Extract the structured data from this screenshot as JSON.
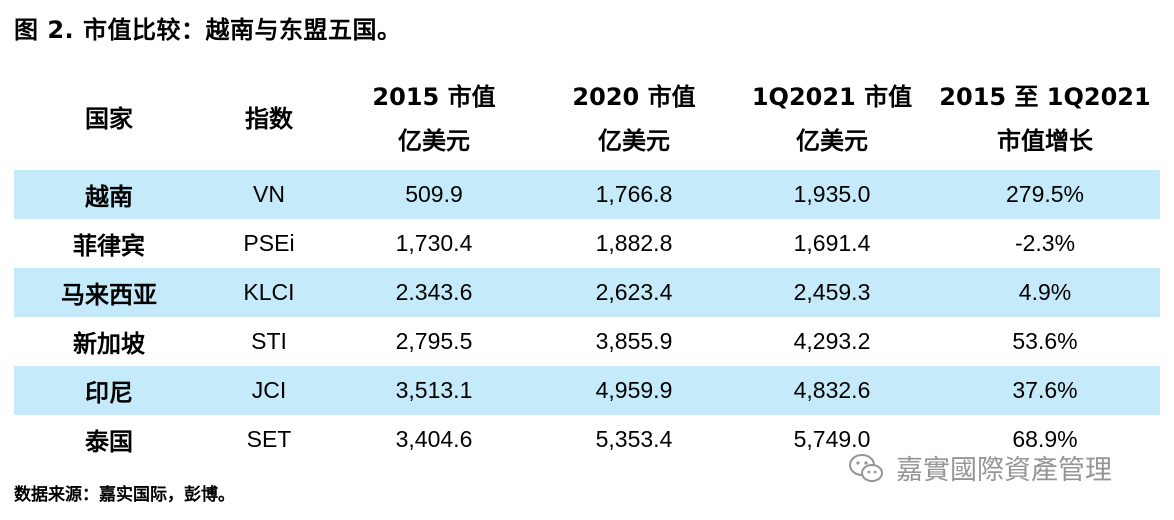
{
  "title": "图 2. 市值比较：越南与东盟五国。",
  "headers": {
    "country": "国家",
    "index": "指数",
    "cap2015": {
      "line1": "2015 市值",
      "line2": "亿美元"
    },
    "cap2020": {
      "line1": "2020 市值",
      "line2": "亿美元"
    },
    "cap1q2021": {
      "line1": "1Q2021 市值",
      "line2": "亿美元"
    },
    "growth": {
      "line1": "2015 至 1Q2021",
      "line2": "市值增长"
    }
  },
  "rows": [
    {
      "country": "越南",
      "index": "VN",
      "cap2015": "509.9",
      "cap2020": "1,766.8",
      "cap1q2021": "1,935.0",
      "growth": "279.5%"
    },
    {
      "country": "菲律宾",
      "index": "PSEi",
      "cap2015": "1,730.4",
      "cap2020": "1,882.8",
      "cap1q2021": "1,691.4",
      "growth": "-2.3%"
    },
    {
      "country": "马来西亚",
      "index": "KLCI",
      "cap2015": "2.343.6",
      "cap2020": "2,623.4",
      "cap1q2021": "2,459.3",
      "growth": "4.9%"
    },
    {
      "country": "新加坡",
      "index": "STI",
      "cap2015": "2,795.5",
      "cap2020": "3,855.9",
      "cap1q2021": "4,293.2",
      "growth": "53.6%"
    },
    {
      "country": "印尼",
      "index": "JCI",
      "cap2015": "3,513.1",
      "cap2020": "4,959.9",
      "cap1q2021": "4,832.6",
      "growth": "37.6%"
    },
    {
      "country": "泰国",
      "index": "SET",
      "cap2015": "3,404.6",
      "cap2020": "5,353.4",
      "cap1q2021": "5,749.0",
      "growth": "68.9%"
    }
  ],
  "source": "数据来源：嘉实国际，彭博。",
  "watermark": {
    "text": "嘉實國際資產管理",
    "icon": "wechat-icon"
  },
  "colors": {
    "row_shade": "#c5ebfb"
  }
}
